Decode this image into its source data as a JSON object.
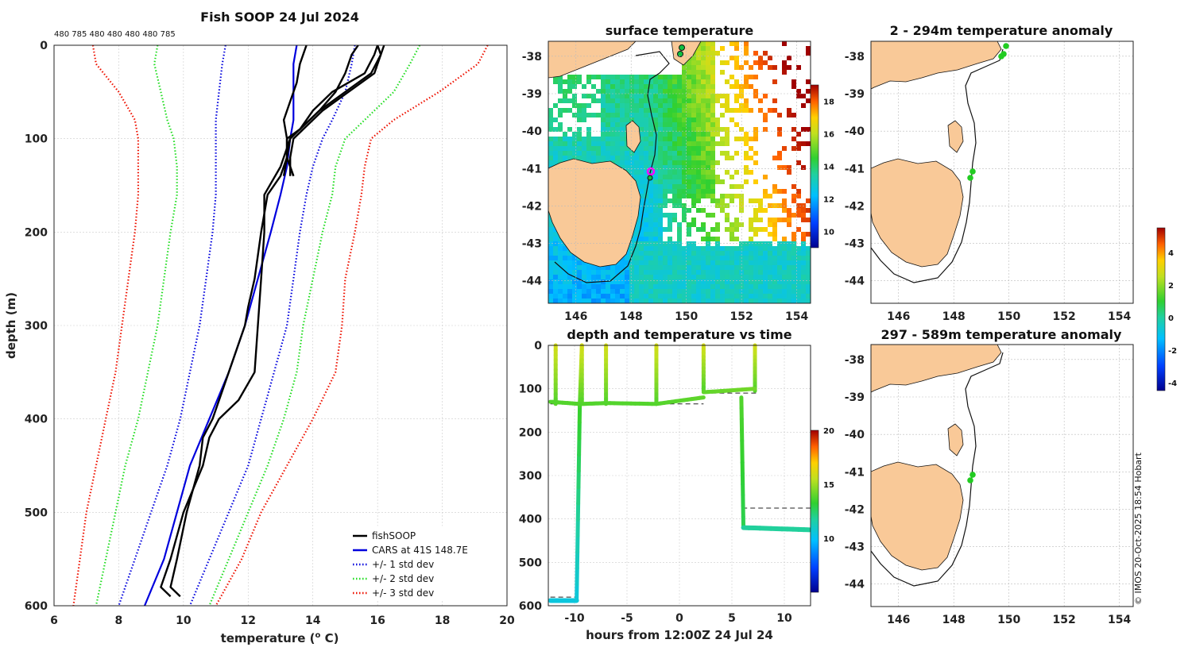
{
  "chart_data": [
    {
      "panel": "profile",
      "type": "line",
      "title": "Fish SOOP 24 Jul 2024",
      "top_labels": "480 785 480 480 480 480 785",
      "xlabel_pre": "temperature (",
      "xlabel_sup": "o",
      "xlabel_post": " C)",
      "ylabel": "depth (m)",
      "xlim": [
        6,
        20
      ],
      "ylim": [
        0,
        600
      ],
      "xticks": [
        "6",
        "8",
        "10",
        "12",
        "14",
        "16",
        "18",
        "20"
      ],
      "yticks": [
        "0",
        "100",
        "200",
        "300",
        "400",
        "500",
        "600"
      ],
      "legend": [
        {
          "label": "fishSOOP",
          "color": "#000000",
          "style": "solid"
        },
        {
          "label": "CARS at 41S 148.7E",
          "color": "#0000dd",
          "style": "solid"
        },
        {
          "label": "+/- 1 std dev",
          "color": "#0000dd",
          "style": "dotted"
        },
        {
          "label": "+/- 2 std dev",
          "color": "#22dd22",
          "style": "dotted"
        },
        {
          "label": "+/- 3 std dev",
          "color": "#ee1100",
          "style": "dotted"
        }
      ],
      "cars_mean": {
        "depth": [
          0,
          20,
          50,
          80,
          100,
          130,
          160,
          200,
          250,
          300,
          350,
          400,
          450,
          500,
          550,
          600
        ],
        "temp": [
          13.5,
          13.4,
          13.4,
          13.4,
          13.3,
          13.2,
          13.0,
          12.7,
          12.3,
          11.9,
          11.4,
          10.8,
          10.2,
          9.8,
          9.4,
          8.8
        ]
      },
      "std1": {
        "depth": [
          0,
          20,
          50,
          80,
          100,
          130,
          160,
          200,
          250,
          300,
          350,
          400,
          450,
          500,
          550,
          600
        ],
        "lower": [
          11.3,
          11.2,
          11.1,
          11.0,
          11.0,
          11.0,
          11.0,
          10.9,
          10.7,
          10.5,
          10.2,
          9.9,
          9.5,
          9.0,
          8.5,
          8.0
        ],
        "upper": [
          15.3,
          15.2,
          15.0,
          14.6,
          14.3,
          14.0,
          13.8,
          13.6,
          13.4,
          13.2,
          12.8,
          12.4,
          12.0,
          11.4,
          10.8,
          10.2
        ]
      },
      "std2": {
        "depth": [
          0,
          20,
          50,
          80,
          100,
          130,
          160,
          200,
          250,
          300,
          350,
          400,
          450,
          500,
          550,
          600
        ],
        "lower": [
          9.2,
          9.1,
          9.3,
          9.5,
          9.7,
          9.8,
          9.8,
          9.6,
          9.4,
          9.2,
          8.9,
          8.6,
          8.2,
          7.9,
          7.6,
          7.3
        ],
        "upper": [
          17.3,
          17.0,
          16.5,
          15.6,
          15.0,
          14.7,
          14.6,
          14.3,
          14.0,
          13.7,
          13.5,
          13.1,
          12.6,
          12.0,
          11.4,
          10.8
        ]
      },
      "std3": {
        "depth": [
          0,
          20,
          50,
          80,
          100,
          130,
          160,
          200,
          250,
          300,
          350,
          400,
          450,
          500,
          550,
          600
        ],
        "lower": [
          7.2,
          7.3,
          8.0,
          8.5,
          8.6,
          8.6,
          8.6,
          8.5,
          8.3,
          8.1,
          7.9,
          7.6,
          7.3,
          7.0,
          6.8,
          6.6
        ],
        "upper": [
          19.4,
          19.1,
          17.9,
          16.5,
          15.8,
          15.6,
          15.5,
          15.3,
          15.0,
          14.9,
          14.7,
          14.0,
          13.2,
          12.4,
          11.8,
          11.0
        ]
      },
      "fishsoop": [
        {
          "depth": [
            0,
            10,
            30,
            50,
            70,
            90,
            100,
            120,
            140
          ],
          "temp": [
            16.0,
            16.1,
            15.8,
            15.0,
            14.2,
            13.6,
            13.3,
            13.2,
            13.4
          ]
        },
        {
          "depth": [
            0,
            10,
            30,
            50,
            70,
            90,
            100,
            120,
            140
          ],
          "temp": [
            16.2,
            16.1,
            15.9,
            15.1,
            14.3,
            13.7,
            13.4,
            13.3,
            13.3
          ]
        },
        {
          "depth": [
            0,
            10,
            30,
            50,
            70,
            90,
            100,
            120,
            140
          ],
          "temp": [
            15.4,
            15.2,
            15.0,
            14.7,
            14.2,
            13.6,
            13.2,
            13.2,
            13.4
          ]
        },
        {
          "depth": [
            0,
            20,
            40,
            60,
            80,
            100,
            120,
            140
          ],
          "temp": [
            13.8,
            13.6,
            13.5,
            13.3,
            13.1,
            13.2,
            13.2,
            13.1
          ]
        },
        {
          "depth": [
            0,
            10,
            30,
            50,
            70,
            90,
            100,
            120,
            140,
            160,
            200,
            250,
            280,
            300,
            350,
            400,
            420,
            450,
            500,
            550,
            580,
            590
          ],
          "temp": [
            16.0,
            15.9,
            15.6,
            14.6,
            14.0,
            13.6,
            13.2,
            13.2,
            13.0,
            12.6,
            12.4,
            12.2,
            12.0,
            11.9,
            11.4,
            10.9,
            10.6,
            10.5,
            10.1,
            9.8,
            9.6,
            9.9
          ]
        },
        {
          "depth": [
            100,
            130,
            160,
            200,
            250,
            300,
            350,
            380,
            400,
            420,
            450,
            500,
            550,
            580,
            590
          ],
          "temp": [
            13.3,
            13.0,
            12.5,
            12.5,
            12.4,
            12.3,
            12.2,
            11.7,
            11.1,
            10.8,
            10.6,
            10.0,
            9.6,
            9.3,
            9.6
          ]
        }
      ]
    },
    {
      "panel": "sst_map",
      "type": "heatmap",
      "title": "surface temperature",
      "xticks": [
        "146",
        "148",
        "150",
        "152",
        "154"
      ],
      "yticks": [
        "-38",
        "-39",
        "-40",
        "-41",
        "-42",
        "-43",
        "-44"
      ],
      "colorbar": {
        "ticks": [
          "10",
          "12",
          "14",
          "16",
          "18"
        ],
        "range": [
          9,
          19
        ]
      }
    },
    {
      "panel": "depth_time",
      "type": "scatter",
      "title": "depth and temperature vs time",
      "xlabel": "hours from 12:00Z 24 Jul 24",
      "xlim": [
        -12.5,
        12.5
      ],
      "ylim": [
        0,
        600
      ],
      "xticks": [
        "-10",
        "-5",
        "0",
        "5",
        "10"
      ],
      "yticks": [
        "0",
        "100",
        "200",
        "300",
        "400",
        "500",
        "600"
      ],
      "colorbar": {
        "ticks": [
          "10",
          "15",
          "20"
        ],
        "range": [
          5,
          20
        ]
      }
    },
    {
      "panel": "anomaly_shallow",
      "type": "map",
      "title": "2 - 294m temperature anomaly",
      "xticks": [
        "146",
        "148",
        "150",
        "152",
        "154"
      ],
      "yticks": [
        "-38",
        "-39",
        "-40",
        "-41",
        "-42",
        "-43",
        "-44"
      ]
    },
    {
      "panel": "anomaly_deep",
      "type": "map",
      "title": "297 - 589m temperature anomaly",
      "xticks": [
        "146",
        "148",
        "150",
        "152",
        "154"
      ],
      "yticks": [
        "-38",
        "-39",
        "-40",
        "-41",
        "-42",
        "-43",
        "-44"
      ]
    },
    {
      "panel": "anomaly_colorbar",
      "type": "colorbar",
      "ticks": [
        "4",
        "2",
        "0",
        "-2",
        "-4"
      ],
      "range": [
        -4.5,
        5.5
      ]
    }
  ],
  "credit": "© IMOS 20-Oct-2025 18:54 Hobart"
}
